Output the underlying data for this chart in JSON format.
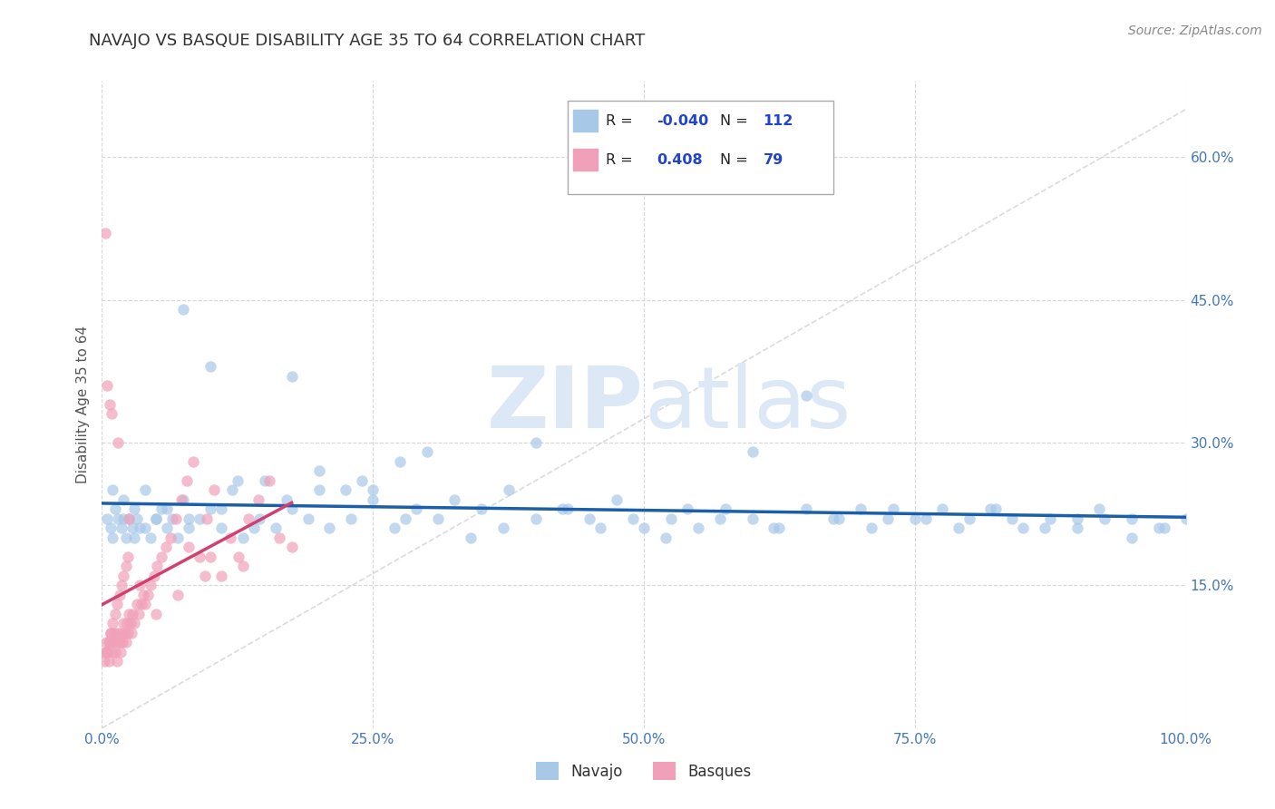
{
  "title": "NAVAJO VS BASQUE DISABILITY AGE 35 TO 64 CORRELATION CHART",
  "source_text": "Source: ZipAtlas.com",
  "ylabel": "Disability Age 35 to 64",
  "xlim": [
    0.0,
    1.0
  ],
  "ylim": [
    0.0,
    0.68
  ],
  "yticks": [
    0.15,
    0.3,
    0.45,
    0.6
  ],
  "ytick_labels": [
    "15.0%",
    "30.0%",
    "45.0%",
    "60.0%"
  ],
  "xticks": [
    0.0,
    0.25,
    0.5,
    0.75,
    1.0
  ],
  "xtick_labels": [
    "0.0%",
    "25.0%",
    "50.0%",
    "75.0%",
    "100.0%"
  ],
  "navajo_R": -0.04,
  "navajo_N": 112,
  "basque_R": 0.408,
  "basque_N": 79,
  "navajo_color": "#a8c8e8",
  "basque_color": "#f0a0b8",
  "navajo_line_color": "#1a5fa8",
  "basque_line_color": "#d04070",
  "legend_R_color": "#2244cc",
  "watermark_color": "#dce8f5",
  "background_color": "#ffffff",
  "grid_color": "#cccccc",
  "title_color": "#333333",
  "source_color": "#888888",
  "tick_color": "#4477bb",
  "navajo_x": [
    0.005,
    0.008,
    0.01,
    0.012,
    0.015,
    0.018,
    0.02,
    0.022,
    0.025,
    0.028,
    0.03,
    0.032,
    0.035,
    0.04,
    0.045,
    0.05,
    0.055,
    0.06,
    0.065,
    0.07,
    0.075,
    0.08,
    0.09,
    0.1,
    0.11,
    0.12,
    0.13,
    0.145,
    0.16,
    0.175,
    0.19,
    0.21,
    0.23,
    0.25,
    0.27,
    0.29,
    0.31,
    0.34,
    0.37,
    0.4,
    0.43,
    0.46,
    0.49,
    0.52,
    0.54,
    0.57,
    0.6,
    0.62,
    0.65,
    0.68,
    0.71,
    0.73,
    0.76,
    0.79,
    0.82,
    0.84,
    0.87,
    0.9,
    0.92,
    0.95,
    0.98,
    1.0,
    0.1,
    0.2,
    0.3,
    0.4,
    0.5,
    0.6,
    0.7,
    0.8,
    0.9,
    0.05,
    0.15,
    0.25,
    0.35,
    0.45,
    0.55,
    0.65,
    0.75,
    0.85,
    0.95,
    0.075,
    0.175,
    0.275,
    0.375,
    0.475,
    0.575,
    0.675,
    0.775,
    0.875,
    0.975,
    0.125,
    0.225,
    0.325,
    0.425,
    0.525,
    0.625,
    0.725,
    0.825,
    0.925,
    0.01,
    0.02,
    0.03,
    0.04,
    0.06,
    0.08,
    0.11,
    0.14,
    0.17,
    0.2,
    0.24,
    0.28
  ],
  "navajo_y": [
    0.22,
    0.21,
    0.2,
    0.23,
    0.22,
    0.21,
    0.24,
    0.2,
    0.22,
    0.21,
    0.23,
    0.22,
    0.21,
    0.25,
    0.2,
    0.22,
    0.23,
    0.21,
    0.22,
    0.2,
    0.24,
    0.21,
    0.22,
    0.23,
    0.21,
    0.25,
    0.2,
    0.22,
    0.21,
    0.23,
    0.22,
    0.21,
    0.22,
    0.24,
    0.21,
    0.23,
    0.22,
    0.2,
    0.21,
    0.22,
    0.23,
    0.21,
    0.22,
    0.2,
    0.23,
    0.22,
    0.29,
    0.21,
    0.35,
    0.22,
    0.21,
    0.23,
    0.22,
    0.21,
    0.23,
    0.22,
    0.21,
    0.22,
    0.23,
    0.22,
    0.21,
    0.22,
    0.38,
    0.27,
    0.29,
    0.3,
    0.21,
    0.22,
    0.23,
    0.22,
    0.21,
    0.22,
    0.26,
    0.25,
    0.23,
    0.22,
    0.21,
    0.23,
    0.22,
    0.21,
    0.2,
    0.44,
    0.37,
    0.28,
    0.25,
    0.24,
    0.23,
    0.22,
    0.23,
    0.22,
    0.21,
    0.26,
    0.25,
    0.24,
    0.23,
    0.22,
    0.21,
    0.22,
    0.23,
    0.22,
    0.25,
    0.22,
    0.2,
    0.21,
    0.23,
    0.22,
    0.23,
    0.21,
    0.24,
    0.25,
    0.26,
    0.22
  ],
  "basque_x": [
    0.002,
    0.003,
    0.004,
    0.005,
    0.006,
    0.007,
    0.008,
    0.009,
    0.01,
    0.011,
    0.012,
    0.013,
    0.014,
    0.015,
    0.016,
    0.017,
    0.018,
    0.019,
    0.02,
    0.021,
    0.022,
    0.023,
    0.024,
    0.025,
    0.026,
    0.027,
    0.028,
    0.03,
    0.032,
    0.034,
    0.036,
    0.038,
    0.04,
    0.042,
    0.045,
    0.048,
    0.051,
    0.055,
    0.059,
    0.063,
    0.068,
    0.073,
    0.078,
    0.084,
    0.09,
    0.097,
    0.103,
    0.11,
    0.118,
    0.126,
    0.135,
    0.144,
    0.154,
    0.164,
    0.175,
    0.004,
    0.006,
    0.008,
    0.01,
    0.012,
    0.014,
    0.016,
    0.018,
    0.02,
    0.022,
    0.024,
    0.003,
    0.005,
    0.007,
    0.009,
    0.015,
    0.025,
    0.035,
    0.05,
    0.07,
    0.095,
    0.13,
    0.1,
    0.08
  ],
  "basque_y": [
    0.07,
    0.08,
    0.09,
    0.08,
    0.07,
    0.09,
    0.1,
    0.08,
    0.09,
    0.1,
    0.08,
    0.09,
    0.07,
    0.1,
    0.09,
    0.08,
    0.1,
    0.09,
    0.11,
    0.1,
    0.09,
    0.11,
    0.1,
    0.12,
    0.11,
    0.1,
    0.12,
    0.11,
    0.13,
    0.12,
    0.13,
    0.14,
    0.13,
    0.14,
    0.15,
    0.16,
    0.17,
    0.18,
    0.19,
    0.2,
    0.22,
    0.24,
    0.26,
    0.28,
    0.18,
    0.22,
    0.25,
    0.16,
    0.2,
    0.18,
    0.22,
    0.24,
    0.26,
    0.2,
    0.19,
    0.08,
    0.09,
    0.1,
    0.11,
    0.12,
    0.13,
    0.14,
    0.15,
    0.16,
    0.17,
    0.18,
    0.52,
    0.36,
    0.34,
    0.33,
    0.3,
    0.22,
    0.15,
    0.12,
    0.14,
    0.16,
    0.17,
    0.18,
    0.19
  ]
}
